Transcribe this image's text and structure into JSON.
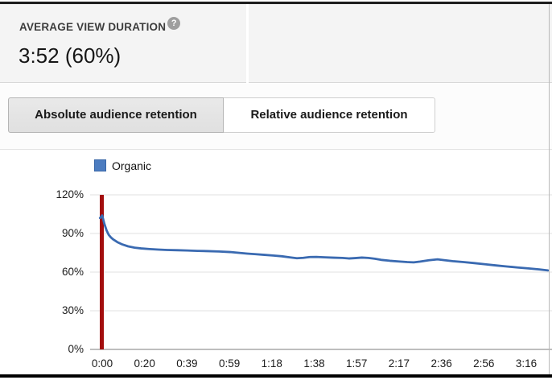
{
  "header": {
    "stat_label": "AVERAGE VIEW DURATION",
    "stat_value": "3:52 (60%)",
    "help_glyph": "?"
  },
  "tabs": [
    {
      "label": "Absolute audience retention",
      "selected": true
    },
    {
      "label": "Relative audience retention",
      "selected": false
    }
  ],
  "chart_data": {
    "type": "line",
    "title": "Absolute audience retention",
    "legend": [
      {
        "label": "Organic",
        "color": "#4c7cc0",
        "border": "#3a67a8"
      }
    ],
    "legend_position": "top-left",
    "grid": true,
    "ylim": [
      0,
      120
    ],
    "y_ticks": [
      {
        "value": 0,
        "label": "0%"
      },
      {
        "value": 30,
        "label": "30%"
      },
      {
        "value": 60,
        "label": "60%"
      },
      {
        "value": 90,
        "label": "90%"
      },
      {
        "value": 120,
        "label": "120%"
      }
    ],
    "x_ticks": [
      {
        "time_s": 0,
        "label": "0:00"
      },
      {
        "time_s": 19.6,
        "label": "0:20"
      },
      {
        "time_s": 39.2,
        "label": "0:39"
      },
      {
        "time_s": 58.8,
        "label": "0:59"
      },
      {
        "time_s": 78.4,
        "label": "1:18"
      },
      {
        "time_s": 98.0,
        "label": "1:38"
      },
      {
        "time_s": 117.6,
        "label": "1:57"
      },
      {
        "time_s": 137.2,
        "label": "2:17"
      },
      {
        "time_s": 156.8,
        "label": "2:36"
      },
      {
        "time_s": 176.4,
        "label": "2:56"
      },
      {
        "time_s": 196.0,
        "label": "3:16"
      }
    ],
    "marker": {
      "type": "playhead-bar",
      "time_s": 0,
      "color": "#a30d0d"
    },
    "colors": {
      "line": "#3a6ab1",
      "grid": "#e7e7e7",
      "baseline": "#a8a8a8"
    },
    "series": [
      {
        "name": "Organic",
        "unit_x": "seconds",
        "unit_y": "percent",
        "points": [
          [
            -1,
            102
          ],
          [
            0,
            104
          ],
          [
            1,
            97.5
          ],
          [
            2,
            92.5
          ],
          [
            3,
            89
          ],
          [
            4,
            87
          ],
          [
            5,
            85.5
          ],
          [
            7,
            83.3
          ],
          [
            9,
            81.7
          ],
          [
            12,
            80.0
          ],
          [
            15,
            79.0
          ],
          [
            18,
            78.4
          ],
          [
            22,
            77.9
          ],
          [
            26,
            77.5
          ],
          [
            30,
            77.2
          ],
          [
            35,
            77.0
          ],
          [
            39,
            76.8
          ],
          [
            44,
            76.5
          ],
          [
            49,
            76.3
          ],
          [
            54,
            76.0
          ],
          [
            59,
            75.6
          ],
          [
            63,
            75.0
          ],
          [
            67,
            74.4
          ],
          [
            71,
            73.9
          ],
          [
            75,
            73.4
          ],
          [
            79,
            72.9
          ],
          [
            83,
            72.3
          ],
          [
            87,
            71.4
          ],
          [
            90,
            70.8
          ],
          [
            93,
            71.1
          ],
          [
            96,
            71.7
          ],
          [
            99,
            71.8
          ],
          [
            103,
            71.5
          ],
          [
            107,
            71.2
          ],
          [
            111,
            71.0
          ],
          [
            114,
            70.6
          ],
          [
            117,
            70.9
          ],
          [
            120,
            71.3
          ],
          [
            123,
            71.0
          ],
          [
            126,
            70.4
          ],
          [
            129,
            69.5
          ],
          [
            133,
            68.8
          ],
          [
            137,
            68.3
          ],
          [
            141,
            67.8
          ],
          [
            144,
            67.6
          ],
          [
            147,
            68.2
          ],
          [
            151,
            69.2
          ],
          [
            155,
            69.9
          ],
          [
            158,
            69.3
          ],
          [
            162,
            68.5
          ],
          [
            167,
            67.8
          ],
          [
            172,
            67.0
          ],
          [
            177,
            66.1
          ],
          [
            182,
            65.2
          ],
          [
            187,
            64.4
          ],
          [
            192,
            63.6
          ],
          [
            197,
            62.9
          ],
          [
            202,
            62.1
          ],
          [
            206,
            61.3
          ]
        ]
      }
    ]
  }
}
